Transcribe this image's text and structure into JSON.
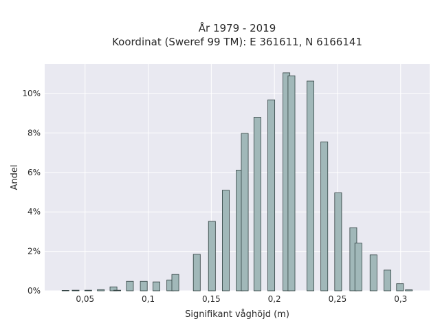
{
  "chart_data": {
    "type": "bar",
    "title": "År 1979 - 2019",
    "subtitle": "Koordinat (Sweref 99 TM): E 361611, N 6166141",
    "xlabel": "Signifikant våghöjd (m)",
    "ylabel": "Andel",
    "xlim": [
      0.018,
      0.323
    ],
    "ylim": [
      0,
      11.5
    ],
    "x_ticks": [
      0.05,
      0.1,
      0.15,
      0.2,
      0.25,
      0.3
    ],
    "x_tick_labels": [
      "0,05",
      "0,1",
      "0,15",
      "0,2",
      "0,25",
      "0,3"
    ],
    "y_ticks": [
      0,
      2,
      4,
      6,
      8,
      10
    ],
    "y_tick_labels": [
      "0%",
      "2%",
      "4%",
      "6%",
      "8%",
      "10%"
    ],
    "grid": true,
    "bar_width": 0.0055,
    "bar_color": "#a1b8b9",
    "bar_edge_color": "#2f3f3f",
    "plot_background": "#e9e9f1",
    "x": [
      0.0345,
      0.0425,
      0.0525,
      0.0625,
      0.0725,
      0.0755,
      0.0855,
      0.0965,
      0.1065,
      0.1175,
      0.1215,
      0.1385,
      0.1505,
      0.1615,
      0.1725,
      0.1765,
      0.1865,
      0.1975,
      0.2095,
      0.2135,
      0.2285,
      0.2395,
      0.2505,
      0.2625,
      0.2665,
      0.2785,
      0.2895,
      0.2995,
      0.3065
    ],
    "values": [
      0.02,
      0.03,
      0.03,
      0.06,
      0.2,
      0.03,
      0.48,
      0.48,
      0.45,
      0.55,
      0.83,
      1.85,
      3.52,
      5.1,
      6.12,
      7.98,
      8.8,
      9.68,
      11.05,
      10.9,
      10.63,
      7.55,
      4.97,
      3.2,
      2.42,
      1.82,
      1.05,
      0.36,
      0.05
    ]
  }
}
